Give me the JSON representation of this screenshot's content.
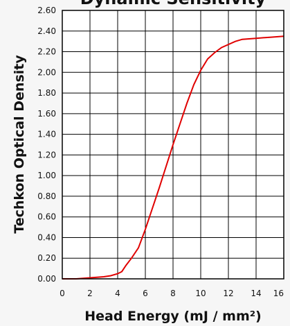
{
  "chart_data": {
    "type": "line",
    "title": "Dynamic Sensitivity",
    "xlabel": "Head Energy (mJ / mm²)",
    "ylabel": "Techkon Optical Density",
    "xlim": [
      0,
      16
    ],
    "ylim": [
      0,
      2.6
    ],
    "x_ticks": [
      "0",
      "2",
      "4",
      "6",
      "8",
      "10",
      "12",
      "14",
      "16"
    ],
    "y_ticks": [
      "0.00",
      "0.20",
      "0.40",
      "0.60",
      "0.80",
      "1.00",
      "1.20",
      "1.40",
      "1.60",
      "1.80",
      "2.00",
      "2.20",
      "2.40",
      "2.60"
    ],
    "grid": true,
    "line_color": "#e00000",
    "series": [
      {
        "x": [
          0,
          1,
          2,
          3,
          3.5,
          4,
          4.3,
          4.6,
          5,
          5.5,
          6,
          6.5,
          7,
          7.5,
          8,
          8.5,
          9,
          9.5,
          10,
          10.5,
          11,
          11.5,
          12,
          12.5,
          13,
          14,
          15,
          16
        ],
        "y": [
          0,
          0,
          0.01,
          0.02,
          0.03,
          0.05,
          0.07,
          0.13,
          0.2,
          0.3,
          0.48,
          0.68,
          0.88,
          1.09,
          1.3,
          1.5,
          1.7,
          1.88,
          2.02,
          2.13,
          2.19,
          2.24,
          2.27,
          2.3,
          2.32,
          2.33,
          2.34,
          2.35
        ]
      }
    ]
  }
}
